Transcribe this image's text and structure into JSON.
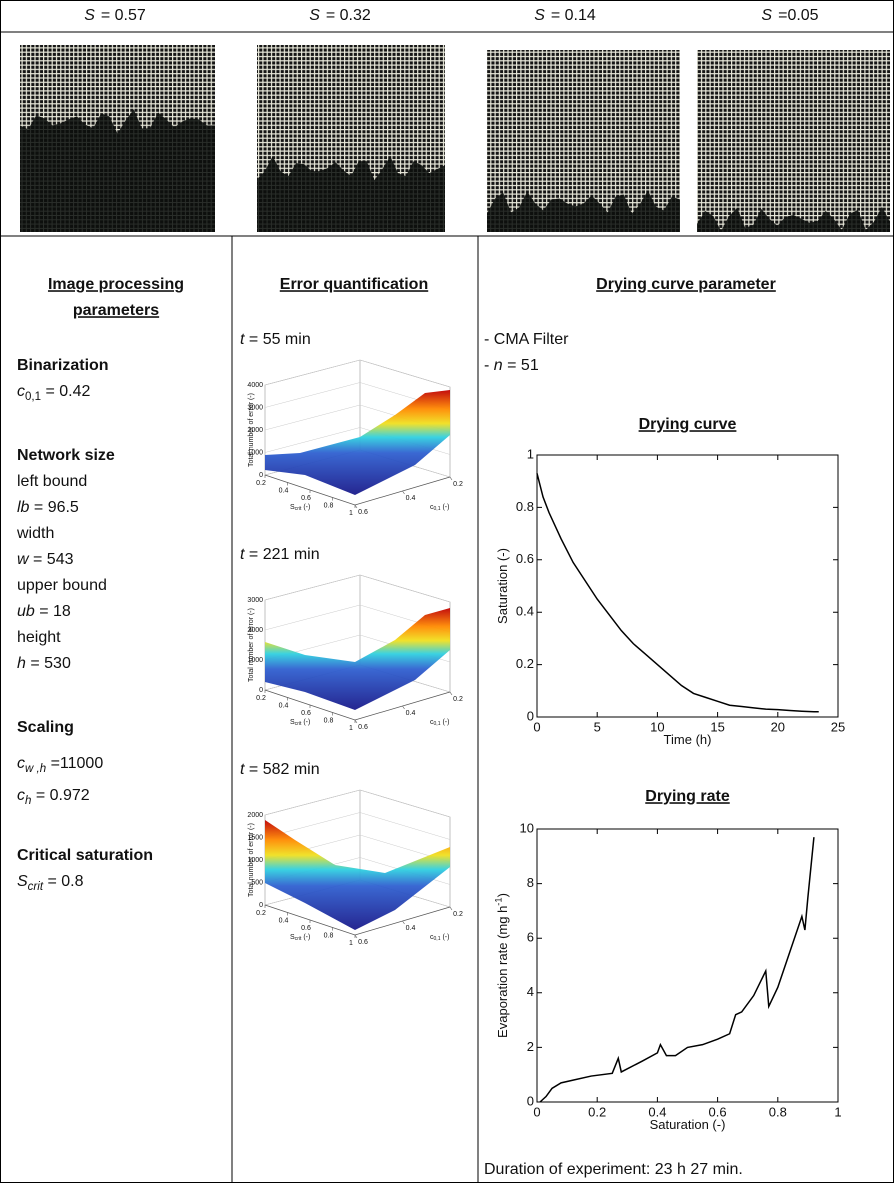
{
  "header": {
    "cells": [
      {
        "symbol": "S",
        "text": "= 0.57",
        "saturation": 0.57
      },
      {
        "symbol": "S",
        "text": "= 0.32",
        "saturation": 0.32
      },
      {
        "symbol": "S",
        "text": "= 0.14",
        "saturation": 0.14
      },
      {
        "symbol": "S",
        "text": "=0.05",
        "saturation": 0.05
      }
    ]
  },
  "image_processing": {
    "title": [
      "Image processing",
      "parameters"
    ],
    "sections": [
      {
        "heading": "Binarization",
        "lines": [
          [
            {
              "t": "c",
              "i": true
            },
            {
              "t": "0,1",
              "sub": true
            },
            {
              "t": " = 0.42"
            }
          ]
        ]
      },
      {
        "heading": "Network size",
        "lines": [
          [
            {
              "t": "left bound"
            }
          ],
          [
            {
              "t": "lb",
              "i": true
            },
            {
              "t": " = 96.5"
            }
          ],
          [
            {
              "t": "width"
            }
          ],
          [
            {
              "t": "w",
              "i": true
            },
            {
              "t": " = 543"
            }
          ],
          [
            {
              "t": "upper bound"
            }
          ],
          [
            {
              "t": "ub",
              "i": true
            },
            {
              "t": " = 18"
            }
          ],
          [
            {
              "t": "height"
            }
          ],
          [
            {
              "t": "h",
              "i": true
            },
            {
              "t": " = 530"
            }
          ]
        ]
      },
      {
        "heading": "Scaling",
        "lines": [
          [
            {
              "t": "c",
              "i": true
            },
            {
              "t": "w ,h",
              "sub": true,
              "i": true
            },
            {
              "t": " =11000"
            }
          ],
          [
            {
              "t": "c",
              "i": true
            },
            {
              "t": "h",
              "sub": true,
              "i": true
            },
            {
              "t": " = 0.972"
            }
          ]
        ]
      },
      {
        "heading": "Critical saturation",
        "lines": [
          [
            {
              "t": "S",
              "i": true
            },
            {
              "t": "crit",
              "sub": true,
              "i": true
            },
            {
              "t": " = 0.8"
            }
          ]
        ]
      }
    ]
  },
  "error_quantification": {
    "title": "Error quantification",
    "zlabel": "Total number of error (-)",
    "xlabel": [
      {
        "t": "S"
      },
      {
        "t": "crit",
        "sub": true
      },
      {
        "t": " (-)"
      }
    ],
    "ylabel": [
      {
        "t": "c"
      },
      {
        "t": "0,1",
        "sub": true
      },
      {
        "t": " (-)"
      }
    ],
    "xlim": [
      0.2,
      1
    ],
    "xticks": [
      0.2,
      0.4,
      0.6,
      0.8,
      1
    ],
    "ylim": [
      0.2,
      0.6
    ],
    "yticks": [
      0.2,
      0.4,
      0.6
    ],
    "plots": [
      {
        "label": [
          {
            "t": "t",
            "i": true
          },
          {
            "t": " = 55 min"
          }
        ],
        "zlim": [
          0,
          4000
        ],
        "zticks": [
          0,
          1000,
          2000,
          3000,
          4000
        ]
      },
      {
        "label": [
          {
            "t": "t",
            "i": true
          },
          {
            "t": " = 221 min"
          }
        ],
        "zlim": [
          0,
          3000
        ],
        "zticks": [
          0,
          1000,
          2000,
          3000
        ]
      },
      {
        "label": [
          {
            "t": "t",
            "i": true
          },
          {
            "t": " = 582 min"
          }
        ],
        "zlim": [
          0,
          2000
        ],
        "zticks": [
          0,
          500,
          1000,
          1500,
          2000
        ]
      }
    ]
  },
  "drying": {
    "title": "Drying curve parameter",
    "lines": [
      [
        {
          "t": "- CMA Filter"
        }
      ],
      [
        {
          "t": "- "
        },
        {
          "t": "n",
          "i": true
        },
        {
          "t": " = 51"
        }
      ]
    ],
    "curve": {
      "title": "Drying curve",
      "xlabel": [
        {
          "t": "Time (h)"
        }
      ],
      "ylabel": [
        {
          "t": "Saturation (-)"
        }
      ],
      "xlim": [
        0,
        25
      ],
      "xticks": [
        0,
        5,
        10,
        15,
        20,
        25
      ],
      "ylim": [
        0,
        1
      ],
      "yticks": [
        0,
        0.2,
        0.4,
        0.6,
        0.8,
        1
      ],
      "x": [
        0,
        0.5,
        1,
        2,
        3,
        4,
        5,
        6,
        7,
        8,
        9,
        10,
        11,
        12,
        13,
        14,
        15,
        16,
        17,
        18,
        19,
        20,
        21,
        22,
        23,
        23.4
      ],
      "y": [
        0.93,
        0.84,
        0.78,
        0.68,
        0.59,
        0.52,
        0.45,
        0.39,
        0.33,
        0.28,
        0.24,
        0.2,
        0.16,
        0.12,
        0.09,
        0.075,
        0.06,
        0.045,
        0.04,
        0.035,
        0.03,
        0.028,
        0.025,
        0.022,
        0.02,
        0.02
      ]
    },
    "rate": {
      "title": "Drying rate",
      "xlabel": [
        {
          "t": "Saturation (-)"
        }
      ],
      "ylabel": [
        {
          "t": "Evaporation rate (mg h"
        },
        {
          "t": "-1",
          "sup": true
        },
        {
          "t": ")"
        }
      ],
      "xlim": [
        0,
        1
      ],
      "xticks": [
        0,
        0.2,
        0.4,
        0.6,
        0.8,
        1
      ],
      "ylim": [
        0,
        10
      ],
      "yticks": [
        0,
        2,
        4,
        6,
        8,
        10
      ],
      "x": [
        0.01,
        0.03,
        0.05,
        0.08,
        0.12,
        0.18,
        0.25,
        0.27,
        0.28,
        0.35,
        0.4,
        0.41,
        0.43,
        0.46,
        0.5,
        0.55,
        0.6,
        0.64,
        0.66,
        0.68,
        0.72,
        0.76,
        0.77,
        0.8,
        0.84,
        0.88,
        0.89,
        0.9,
        0.92
      ],
      "y": [
        0,
        0.2,
        0.5,
        0.7,
        0.8,
        0.95,
        1.05,
        1.6,
        1.1,
        1.5,
        1.8,
        2.1,
        1.7,
        1.7,
        2,
        2.1,
        2.3,
        2.5,
        3.2,
        3.3,
        3.9,
        4.8,
        3.5,
        4.2,
        5.5,
        6.8,
        6.3,
        7.5,
        9.7
      ]
    },
    "footer": "Duration of experiment: 23 h 27 min."
  }
}
